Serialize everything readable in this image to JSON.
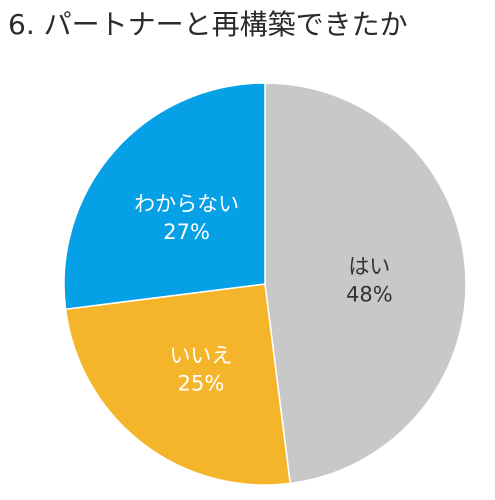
{
  "chart_data": {
    "type": "pie",
    "title": "6. パートナーと再構築できたか",
    "slices": [
      {
        "label": "はい",
        "value": 48,
        "value_label": "48%",
        "color": "#c8c8c9",
        "text_color": "#333333"
      },
      {
        "label": "いいえ",
        "value": 25,
        "value_label": "25%",
        "color": "#f5b52b",
        "text_color": "#ffffff"
      },
      {
        "label": "わからない",
        "value": 27,
        "value_label": "27%",
        "color": "#05a0e6",
        "text_color": "#ffffff"
      }
    ],
    "legend": "none",
    "start_angle": "12 o'clock",
    "direction": "clockwise"
  }
}
